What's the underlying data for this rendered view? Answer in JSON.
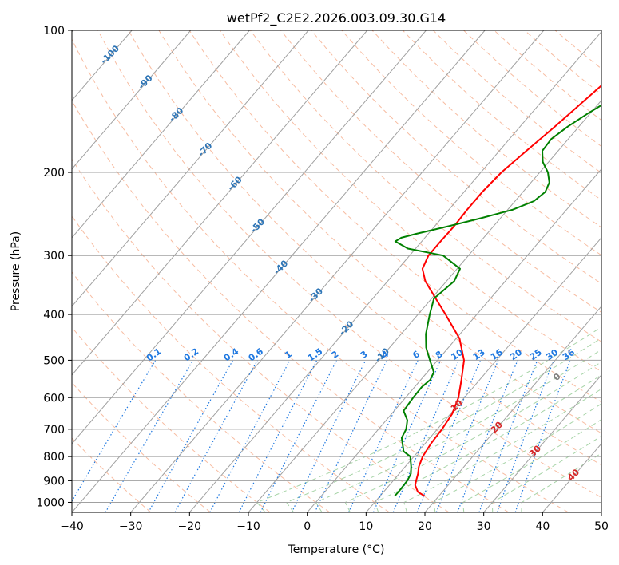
{
  "chart_data": {
    "type": "line",
    "title": "wetPf2_C2E2.2026.003.09.30.G14",
    "xlabel": "Temperature (°C)",
    "ylabel": "Pressure (hPa)",
    "xlim": [
      -40,
      50
    ],
    "ylim": [
      1050,
      100
    ],
    "y_scale": "log",
    "x_ticks": [
      -40,
      -30,
      -20,
      -10,
      0,
      10,
      20,
      30,
      40,
      50
    ],
    "y_ticks": [
      100,
      200,
      300,
      400,
      500,
      600,
      700,
      800,
      900,
      1000
    ],
    "grid": true,
    "colors": {
      "temperature": "#ff0000",
      "dewpoint": "#008000",
      "isotherm": "#a0a0a0",
      "dry_adiabat": "#f4a582",
      "moist_adiabat": "#98cc98",
      "mixing_ratio": "#1f78e0",
      "isotherm_label": "#2e75b6",
      "pseudo_label": "#d62728",
      "dry_label": "#808080"
    },
    "series": [
      {
        "key": "temperature",
        "pressure": [
          970,
          950,
          920,
          900,
          870,
          840,
          800,
          750,
          700,
          650,
          600,
          550,
          500,
          450,
          400,
          370,
          340,
          320,
          300,
          280,
          260,
          240,
          220,
          200,
          180,
          160,
          140,
          125,
          110,
          100
        ],
        "values": [
          17.6,
          15.8,
          14.4,
          13.9,
          13.2,
          12.3,
          11.5,
          11.0,
          10.8,
          10.3,
          9.0,
          6.9,
          4.5,
          0.6,
          -5.3,
          -9.3,
          -13.6,
          -15.9,
          -16.8,
          -16.8,
          -16.7,
          -16.9,
          -16.9,
          -16.5,
          -15.4,
          -14.1,
          -12.8,
          -11.7,
          -9.9,
          -8.7
        ]
      },
      {
        "key": "dewpoint",
        "pressure": [
          970,
          940,
          900,
          870,
          840,
          800,
          780,
          760,
          730,
          700,
          670,
          640,
          600,
          570,
          550,
          530,
          500,
          470,
          440,
          400,
          370,
          340,
          320,
          300,
          290,
          280,
          275,
          270,
          260,
          250,
          240,
          230,
          220,
          210,
          200,
          190,
          180,
          170,
          160,
          150,
          140,
          130,
          120,
          110,
          100
        ],
        "values": [
          12.5,
          12.5,
          12.4,
          12.0,
          11.0,
          9.4,
          7.5,
          6.6,
          5.2,
          4.7,
          3.6,
          1.6,
          1.3,
          1.2,
          1.6,
          1.1,
          -1.3,
          -3.8,
          -5.8,
          -8.0,
          -9.6,
          -8.7,
          -9.5,
          -14.3,
          -21.3,
          -24.5,
          -24.0,
          -22.1,
          -17.6,
          -13.3,
          -9.2,
          -6.8,
          -6.2,
          -6.9,
          -8.6,
          -11.0,
          -12.7,
          -12.9,
          -11.9,
          -10.4,
          -8.5,
          -6.2,
          -3.8,
          -1.3,
          0.6
        ]
      }
    ],
    "isotherm_labels": [
      "-100",
      "-90",
      "-80",
      "-70",
      "-60",
      "-50",
      "-40",
      "-30",
      "-20",
      "-10"
    ],
    "mixing_ratio_labels": [
      "0.1",
      "0.2",
      "0.4",
      "0.6",
      "1",
      "1.5",
      "2",
      "3",
      "4",
      "6",
      "8",
      "10",
      "13",
      "16",
      "20",
      "25",
      "30",
      "36"
    ],
    "moist_adiabat_labels": [
      "10",
      "20",
      "30",
      "40"
    ],
    "dry_adiabat_labels": [
      "0"
    ]
  }
}
